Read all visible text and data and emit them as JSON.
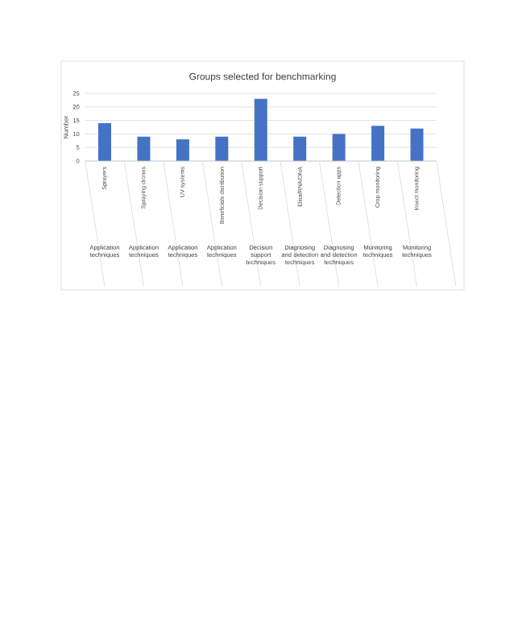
{
  "chart_data": {
    "type": "bar",
    "title": "Groups selected for benchmarking",
    "ylabel": "Number",
    "categories": [
      "Sprayers",
      "Spraying drones",
      "UV systems",
      "Beneficials distribution",
      "Decision support",
      "Elisa/RNA/DNA",
      "Detection apps",
      "Crop monitoring",
      "Insect monitoring"
    ],
    "values": [
      14,
      9,
      8,
      9,
      23,
      9,
      10,
      13,
      12
    ],
    "color": "#4472c4",
    "ylim": [
      0,
      25
    ],
    "yticks": [
      0,
      5,
      10,
      15,
      20,
      25
    ],
    "grid": "y",
    "annotations": [
      "Application techniques",
      "Application techniques",
      "Application techniques",
      "Application techniques",
      "Decision support techniques",
      "Diagnosing and detection techniques",
      "Diagnosing and detection techniques",
      "Monitoring techniques",
      "Monitoring techniques"
    ]
  }
}
